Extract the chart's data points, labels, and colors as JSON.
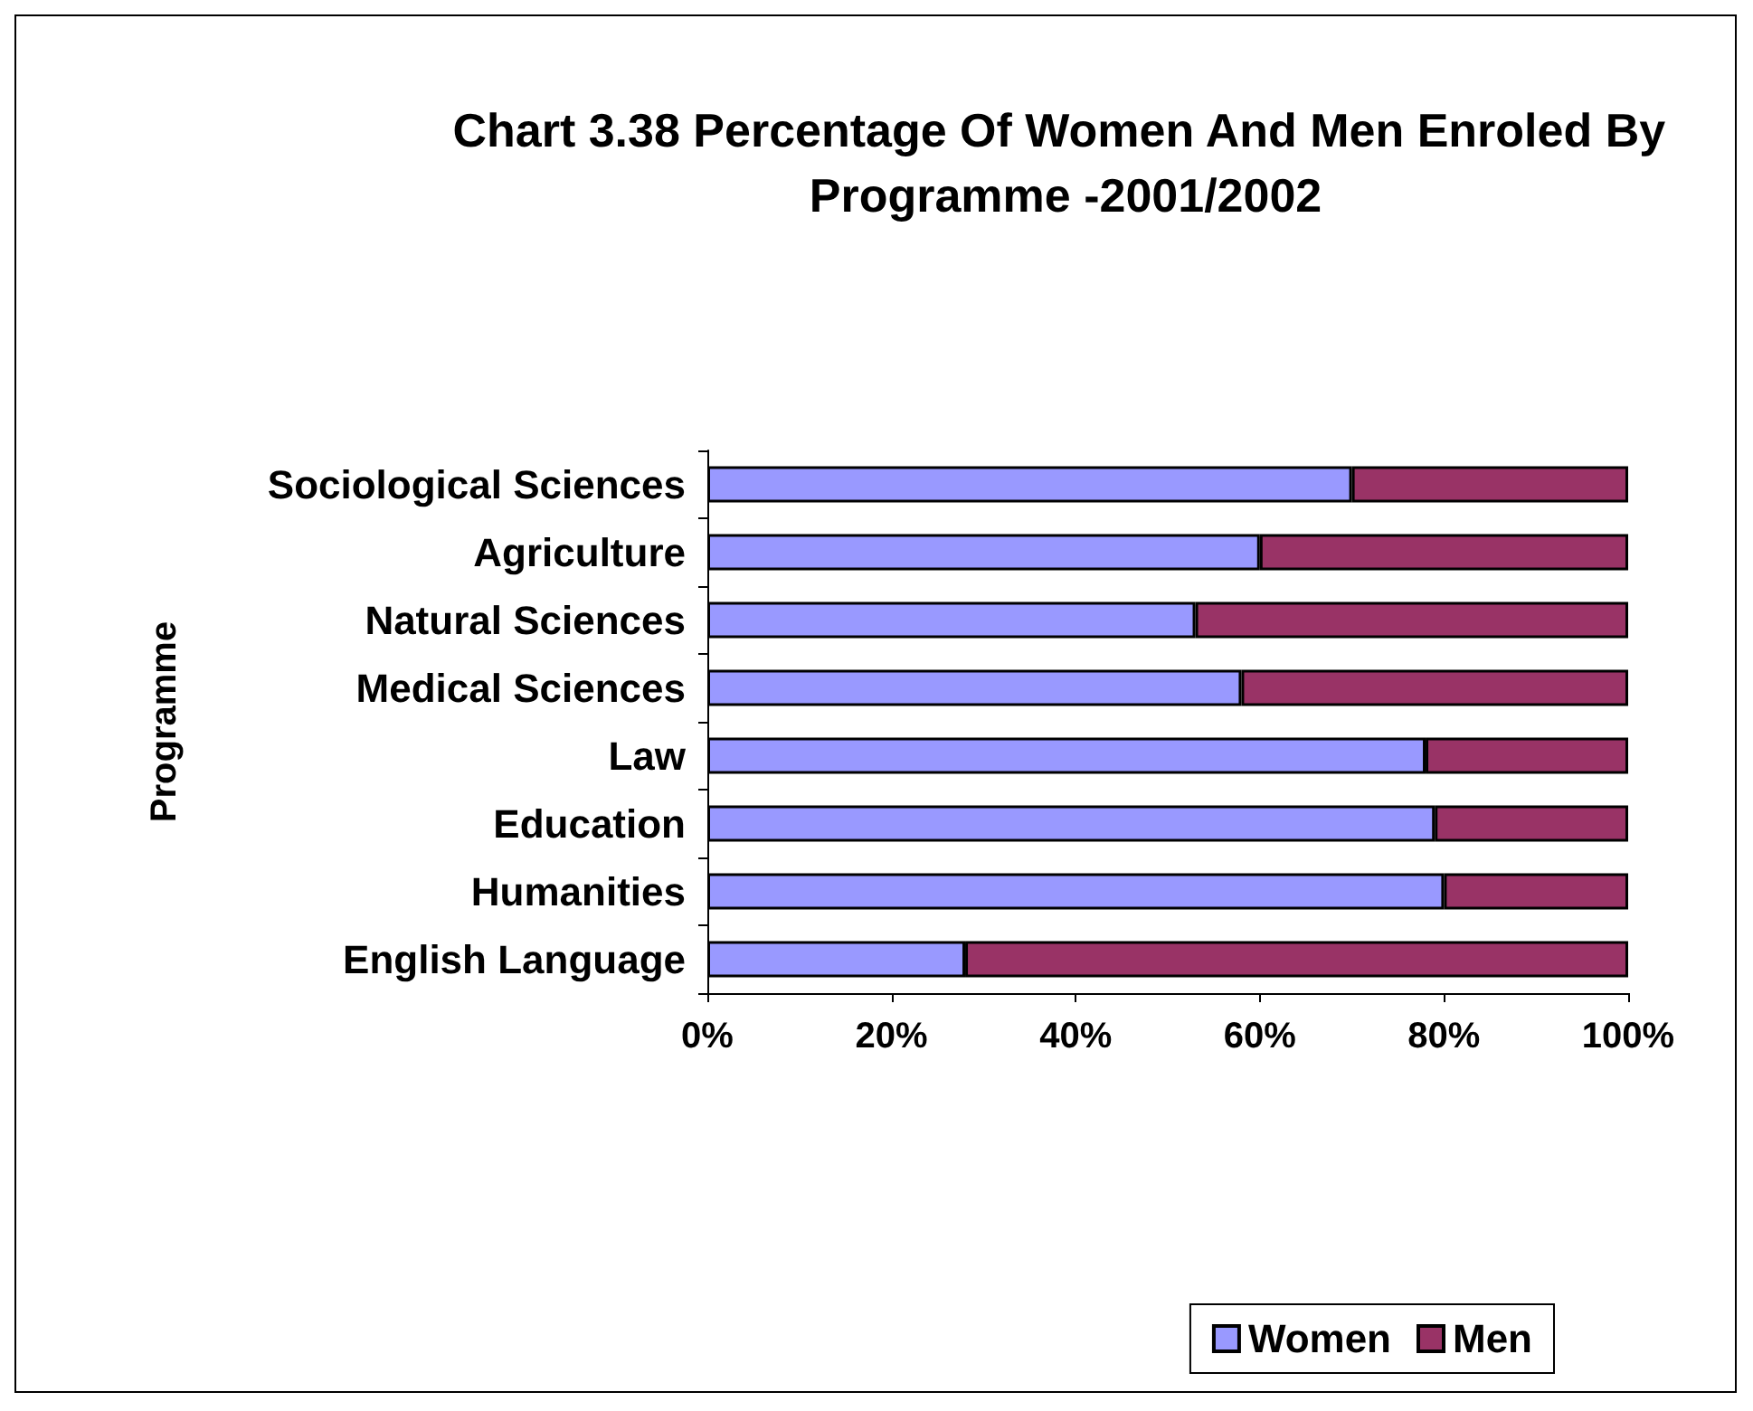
{
  "chart_data": {
    "type": "bar",
    "orientation": "horizontal",
    "stacked": true,
    "title": "Chart 3.38 Percentage Of Women And Men Enroled By Programme -2001/2002",
    "ylabel": "Programme",
    "categories": [
      "Sociological Sciences",
      "Agriculture",
      "Natural Sciences",
      "Medical Sciences",
      "Law",
      "Education",
      "Humanities",
      "English Language"
    ],
    "series": [
      {
        "name": "Women",
        "color": "#9999ff",
        "values": [
          70,
          60,
          53,
          58,
          78,
          79,
          80,
          28
        ]
      },
      {
        "name": "Men",
        "color": "#993366",
        "values": [
          30,
          40,
          47,
          42,
          22,
          21,
          20,
          72
        ]
      }
    ],
    "xlim": [
      0,
      100
    ],
    "xticks": [
      {
        "value": 0,
        "label": "0%"
      },
      {
        "value": 20,
        "label": "20%"
      },
      {
        "value": 40,
        "label": "40%"
      },
      {
        "value": 60,
        "label": "60%"
      },
      {
        "value": 80,
        "label": "80%"
      },
      {
        "value": 100,
        "label": "100%"
      }
    ],
    "grid": false,
    "legend": "bottom right"
  }
}
